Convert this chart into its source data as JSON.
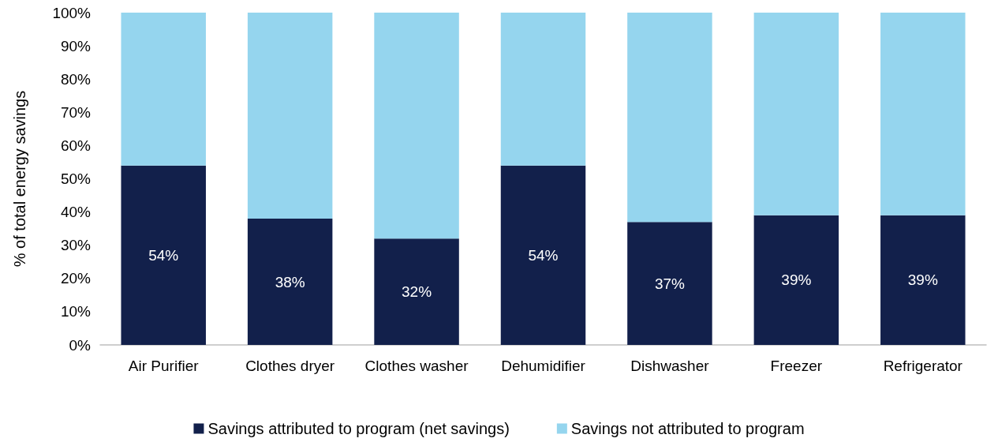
{
  "chart_data": {
    "type": "bar",
    "stacked": true,
    "ylabel": "% of total energy savings",
    "categories": [
      "Air Purifier",
      "Clothes dryer",
      "Clothes washer",
      "Dehumidifier",
      "Dishwasher",
      "Freezer",
      "Refrigerator"
    ],
    "series": [
      {
        "name": "Savings attributed to program (net savings)",
        "color": "#12204b",
        "values": [
          54,
          38,
          32,
          54,
          37,
          39,
          39
        ],
        "value_labels": [
          "54%",
          "38%",
          "32%",
          "54%",
          "37%",
          "39%",
          "39%"
        ]
      },
      {
        "name": "Savings not attributed to program",
        "color": "#95d5ee",
        "values": [
          46,
          62,
          68,
          46,
          63,
          61,
          61
        ]
      }
    ],
    "ylim": [
      0,
      100
    ],
    "yticks": [
      {
        "value": 0,
        "label": "0%"
      },
      {
        "value": 10,
        "label": "10%"
      },
      {
        "value": 20,
        "label": "20%"
      },
      {
        "value": 30,
        "label": "30%"
      },
      {
        "value": 40,
        "label": "40%"
      },
      {
        "value": 50,
        "label": "50%"
      },
      {
        "value": 60,
        "label": "60%"
      },
      {
        "value": 70,
        "label": "70%"
      },
      {
        "value": 80,
        "label": "80%"
      },
      {
        "value": 90,
        "label": "90%"
      },
      {
        "value": 100,
        "label": "100%"
      }
    ],
    "grid": false,
    "legend": "bottom"
  }
}
